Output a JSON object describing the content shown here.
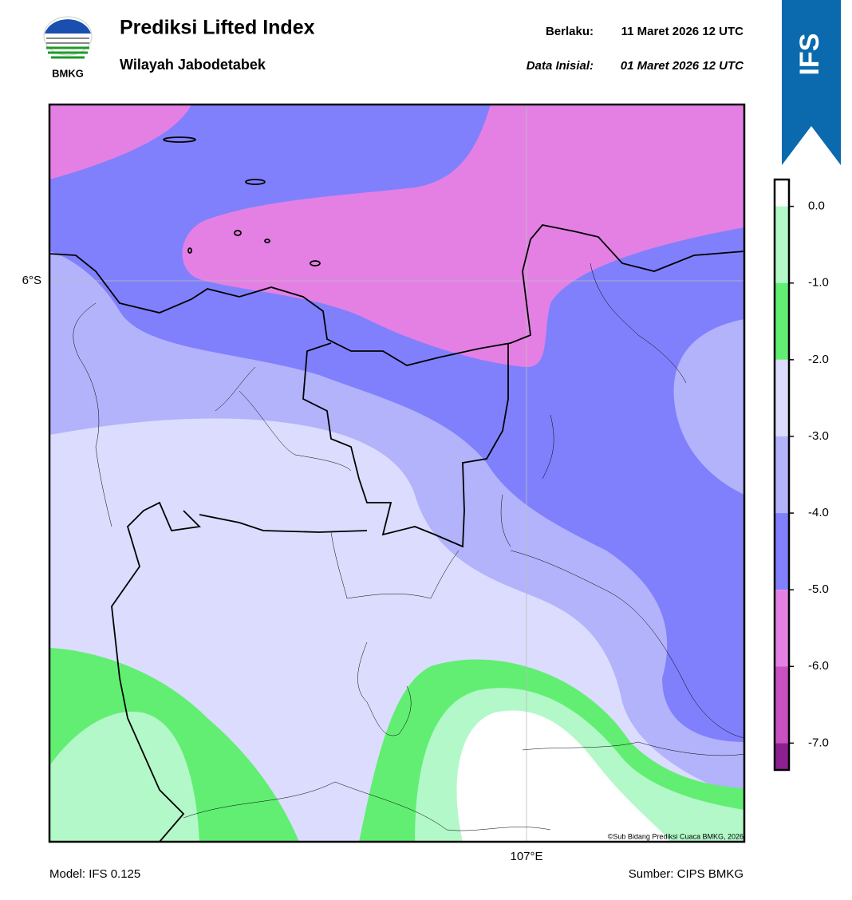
{
  "header": {
    "logo": "BMKG",
    "title": "Prediksi Lifted Index",
    "subtitle": "Wilayah Jabodetabek",
    "valid_label": "Berlaku:",
    "valid_time": "11 Maret 2026 12 UTC",
    "init_label": "Data Inisial:",
    "init_time": "01 Maret 2026 12 UTC"
  },
  "banner": "IFS",
  "map": {
    "lat_label": "6°S",
    "lon_label": "107°E",
    "copyright": "©Sub Bidang Prediksi Cuaca BMKG, 2026"
  },
  "colorbar": {
    "lim": [
      -7.35,
      0.35
    ],
    "ticks": [
      {
        "value": 0,
        "label": "0.0"
      },
      {
        "value": -1,
        "label": "-1.0"
      },
      {
        "value": -2,
        "label": "-2.0"
      },
      {
        "value": -3,
        "label": "-3.0"
      },
      {
        "value": -4,
        "label": "-4.0"
      },
      {
        "value": -5,
        "label": "-5.0"
      },
      {
        "value": -6,
        "label": "-6.0"
      },
      {
        "value": -7,
        "label": "-7.0"
      }
    ],
    "colors": [
      "#ffffff",
      "#b3f8c8",
      "#62ee73",
      "#dcdcfe",
      "#b3b3fb",
      "#8080fc",
      "#e480e4",
      "#c850c0",
      "#8c2090"
    ]
  },
  "footer": {
    "model": "Model: IFS 0.125",
    "source": "Sumber: CIPS BMKG"
  }
}
